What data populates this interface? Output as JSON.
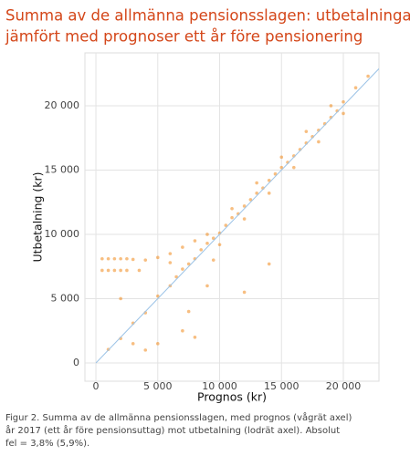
{
  "chart_data": {
    "type": "scatter",
    "title_lines": [
      "Summa av de allmänna pensionsslagen: utbetalningar",
      "jämfört med prognoser ett år före pensionering"
    ],
    "x_label": "Prognos (kr)",
    "y_label": "Utbetalning (kr)",
    "caption_lines": [
      "Figur 2. Summa av de allmänna pensionsslagen, med prognos (vågrät axel)",
      "år 2017 (ett år före pensionsuttag) mot utbetalning (lodrät axel). Absolut",
      "fel = 3,8% (5,9%)."
    ],
    "xlim": [
      -890,
      22880
    ],
    "ylim": [
      -1420,
      24110
    ],
    "xticks": [
      0,
      {
        "value": 5000,
        "label": "5 000"
      },
      {
        "value": 10000,
        "label": "10 000"
      },
      {
        "value": 15000,
        "label": "15 000"
      },
      {
        "value": 20000,
        "label": "20 000"
      }
    ],
    "yticks": [
      0,
      {
        "value": 5000,
        "label": "5 000"
      },
      {
        "value": 10000,
        "label": "10 000"
      },
      {
        "value": 15000,
        "label": "15 000"
      },
      {
        "value": 20000,
        "label": "20 000"
      }
    ],
    "grid": true,
    "identity_line": true,
    "identity_color": "#9cc3e6",
    "series": [
      {
        "color": "#f0891a",
        "x": [
          1000,
          2000,
          3000,
          4000,
          5000,
          6000,
          6500,
          7000,
          7500,
          8000,
          8500,
          9000,
          9500,
          10000,
          10500,
          11000,
          11500,
          12000,
          12500,
          13000,
          13500,
          14000,
          14500,
          15000,
          15500,
          16000,
          16500,
          17000,
          17500,
          18000,
          18500,
          19000,
          19500,
          20000,
          21000,
          22000,
          9000,
          10000,
          11000,
          12000,
          13000,
          14000,
          15000,
          16000,
          17000,
          18000,
          19000,
          20000,
          8000,
          9500,
          7000,
          6000,
          500,
          1000,
          1500,
          2000,
          2500,
          3000,
          500,
          1000,
          1500,
          2000,
          2500,
          3500,
          4000,
          5000,
          6000,
          3000,
          4000,
          5000,
          7000,
          8000,
          7500,
          9000,
          12000,
          14000,
          2000
        ],
        "values": [
          1050,
          1900,
          3100,
          3900,
          5200,
          6000,
          6700,
          7300,
          7700,
          8100,
          8800,
          9300,
          9700,
          10100,
          10700,
          11300,
          11600,
          12200,
          12700,
          13200,
          13600,
          14200,
          14700,
          15200,
          15600,
          16100,
          16600,
          17100,
          17600,
          18100,
          18600,
          19100,
          19600,
          20300,
          21400,
          22300,
          10000,
          9200,
          12000,
          11200,
          14000,
          13200,
          16000,
          15200,
          18000,
          17200,
          20000,
          19400,
          9500,
          8000,
          9000,
          8500,
          8100,
          8100,
          8100,
          8100,
          8100,
          8050,
          7200,
          7200,
          7200,
          7200,
          7200,
          7200,
          8000,
          8200,
          7800,
          1500,
          1000,
          1500,
          2500,
          2000,
          4000,
          6000,
          5500,
          7700,
          5000
        ]
      }
    ]
  }
}
